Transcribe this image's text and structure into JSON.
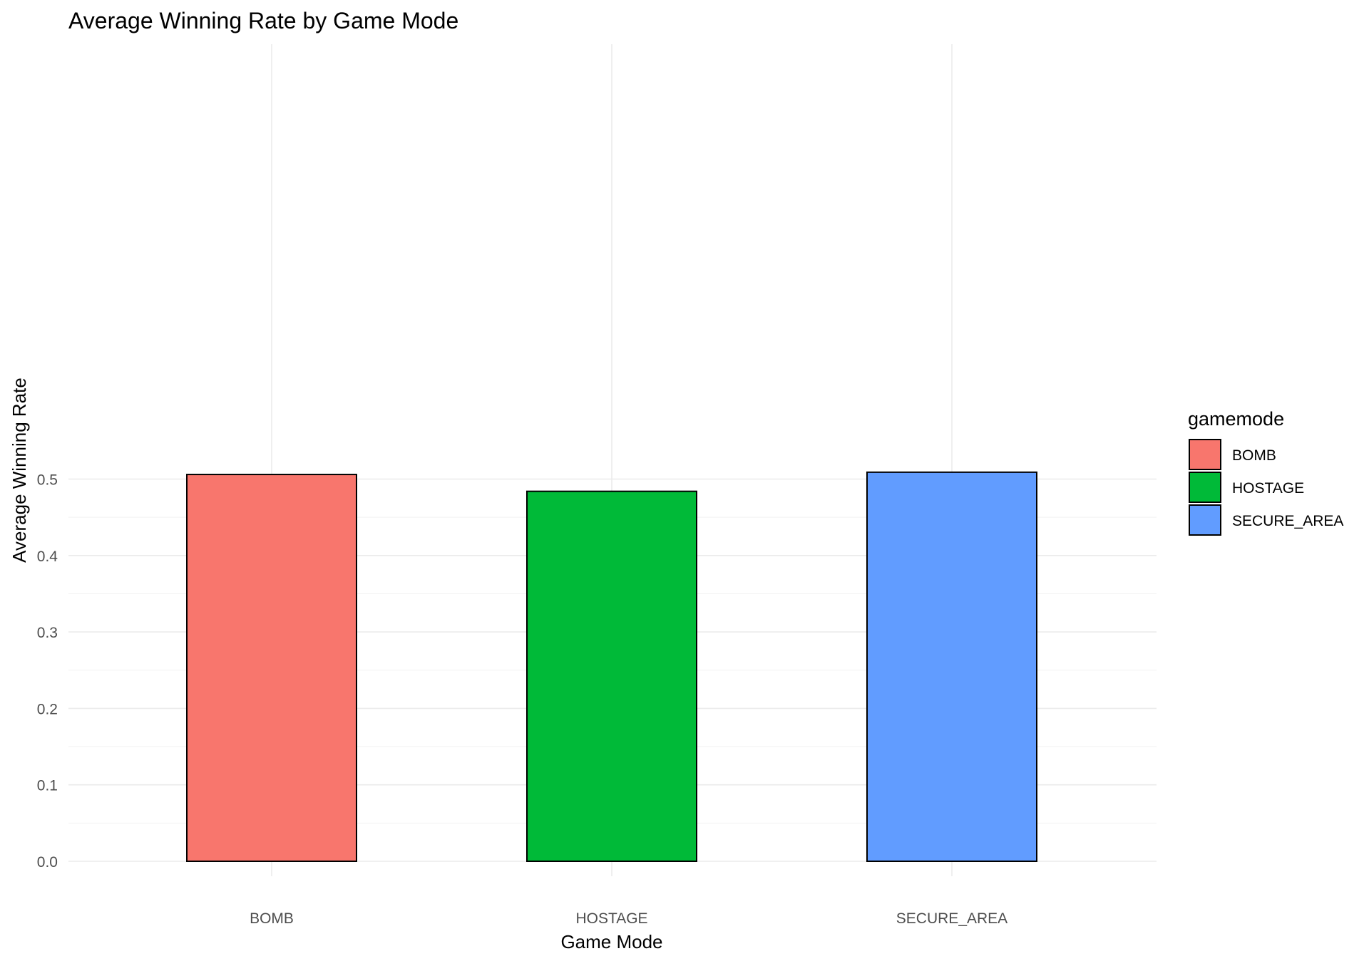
{
  "chart_data": {
    "type": "bar",
    "title": "Average Winning Rate by Game Mode",
    "xlabel": "Game Mode",
    "ylabel": "Average Winning Rate",
    "categories": [
      "BOMB",
      "HOSTAGE",
      "SECURE_AREA"
    ],
    "values": [
      0.506,
      0.484,
      0.509
    ],
    "colors": [
      "#F8766D",
      "#00BA38",
      "#619CFF"
    ],
    "ylim": [
      0,
      0.55
    ],
    "yticks": [
      0.0,
      0.1,
      0.2,
      0.3,
      0.4,
      0.5
    ],
    "ytick_labels": [
      "0.0",
      "0.1",
      "0.2",
      "0.3",
      "0.4",
      "0.5"
    ],
    "grid": true,
    "legend": {
      "title": "gamemode",
      "position": "right",
      "entries": [
        "BOMB",
        "HOSTAGE",
        "SECURE_AREA"
      ]
    }
  }
}
